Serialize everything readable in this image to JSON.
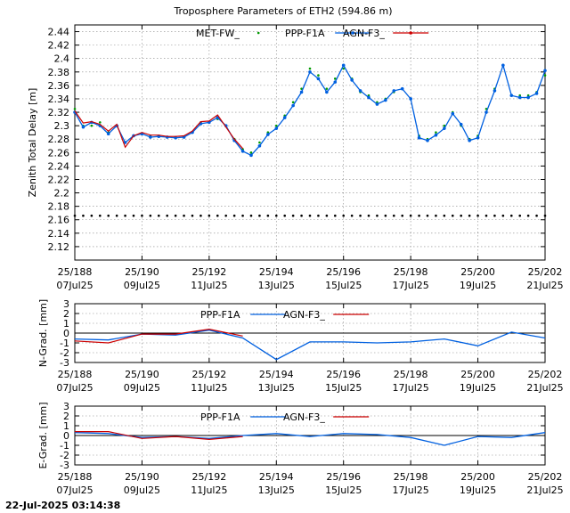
{
  "title": "Troposphere Parameters of ETH2 (594.86 m)",
  "footer": "22-Jul-2025 03:14:38",
  "colors": {
    "met": "#009900",
    "ppp": "#0060e0",
    "agn": "#cc0000",
    "ref": "#000000",
    "grid": "#888888"
  },
  "chart_data": [
    {
      "id": "ztd",
      "type": "line",
      "ylabel": "Zenith Total Delay [m]",
      "ylim": [
        2.1,
        2.45
      ],
      "yticks": [
        2.12,
        2.14,
        2.16,
        2.18,
        2.2,
        2.22,
        2.24,
        2.26,
        2.28,
        2.3,
        2.32,
        2.34,
        2.36,
        2.38,
        2.4,
        2.42,
        2.44
      ],
      "xlim": [
        188,
        202
      ],
      "xticks": [
        188,
        190,
        192,
        194,
        196,
        198,
        200,
        202
      ],
      "xticklabels_top": [
        "25/188",
        "25/190",
        "25/192",
        "25/194",
        "25/196",
        "25/198",
        "25/200",
        "25/202"
      ],
      "xticklabels_bottom": [
        "07Jul25",
        "09Jul25",
        "11Jul25",
        "13Jul25",
        "15Jul25",
        "17Jul25",
        "19Jul25",
        "21Jul25"
      ],
      "grid": true,
      "legend": [
        {
          "label": "MET-FW_",
          "series": "met"
        },
        {
          "label": "PPP-F1A",
          "series": "ppp"
        },
        {
          "label": "AGN-F3_",
          "series": "agn"
        }
      ],
      "series": [
        {
          "key": "met",
          "name": "MET-FW_",
          "style": "points",
          "x": [
            188.0,
            188.25,
            188.5,
            188.75,
            189.0,
            189.25,
            189.5,
            189.75,
            190.0,
            190.25,
            190.5,
            190.75,
            191.0,
            191.25,
            191.5,
            191.75,
            192.0,
            192.25,
            192.5,
            192.75,
            193.0,
            193.25,
            193.5,
            193.75,
            194.0,
            194.25,
            194.5,
            194.75,
            195.0,
            195.25,
            195.5,
            195.75,
            196.0,
            196.25,
            196.5,
            196.75,
            197.0,
            197.25,
            197.5,
            197.75,
            198.0,
            198.25,
            198.5,
            198.75,
            199.0,
            199.25,
            199.5,
            199.75,
            200.0,
            200.25,
            200.5,
            200.75,
            201.0,
            201.25,
            201.5,
            201.75,
            202.0
          ],
          "y": [
            2.325,
            2.3,
            2.3,
            2.305,
            2.29,
            2.3,
            2.275,
            2.285,
            2.288,
            2.285,
            2.285,
            2.283,
            2.283,
            2.284,
            2.29,
            2.305,
            2.305,
            2.31,
            2.3,
            2.28,
            2.265,
            2.26,
            2.275,
            2.29,
            2.3,
            2.315,
            2.335,
            2.355,
            2.385,
            2.375,
            2.355,
            2.37,
            2.385,
            2.37,
            2.35,
            2.345,
            2.335,
            2.34,
            2.35,
            2.355,
            2.34,
            2.285,
            2.28,
            2.29,
            2.3,
            2.32,
            2.3,
            2.28,
            2.285,
            2.325,
            2.355,
            2.39,
            2.345,
            2.345,
            2.345,
            2.35,
            2.375
          ]
        },
        {
          "key": "ppp",
          "name": "PPP-F1A",
          "style": "line-points",
          "x": [
            188.0,
            188.25,
            188.5,
            188.75,
            189.0,
            189.25,
            189.5,
            189.75,
            190.0,
            190.25,
            190.5,
            190.75,
            191.0,
            191.25,
            191.5,
            191.75,
            192.0,
            192.25,
            192.5,
            192.75,
            193.0,
            193.25,
            193.5,
            193.75,
            194.0,
            194.25,
            194.5,
            194.75,
            195.0,
            195.25,
            195.5,
            195.75,
            196.0,
            196.25,
            196.5,
            196.75,
            197.0,
            197.25,
            197.5,
            197.75,
            198.0,
            198.25,
            198.5,
            198.75,
            199.0,
            199.25,
            199.5,
            199.75,
            200.0,
            200.25,
            200.5,
            200.75,
            201.0,
            201.25,
            201.5,
            201.75,
            202.0
          ],
          "y": [
            2.32,
            2.298,
            2.305,
            2.3,
            2.288,
            2.3,
            2.275,
            2.285,
            2.288,
            2.283,
            2.284,
            2.283,
            2.282,
            2.283,
            2.29,
            2.303,
            2.305,
            2.312,
            2.3,
            2.278,
            2.262,
            2.256,
            2.27,
            2.287,
            2.296,
            2.312,
            2.33,
            2.35,
            2.38,
            2.37,
            2.35,
            2.365,
            2.39,
            2.368,
            2.352,
            2.342,
            2.332,
            2.338,
            2.352,
            2.355,
            2.34,
            2.282,
            2.278,
            2.286,
            2.296,
            2.318,
            2.302,
            2.278,
            2.282,
            2.32,
            2.352,
            2.39,
            2.345,
            2.342,
            2.342,
            2.348,
            2.382
          ]
        },
        {
          "key": "agn",
          "name": "AGN-F3_",
          "style": "line",
          "x": [
            188.0,
            188.25,
            188.5,
            188.75,
            189.0,
            189.25,
            189.5,
            189.75,
            190.0,
            190.25,
            190.5,
            190.75,
            191.0,
            191.25,
            191.5,
            191.75,
            192.0,
            192.25,
            192.5,
            192.75,
            193.0
          ],
          "y": [
            2.322,
            2.304,
            2.306,
            2.302,
            2.292,
            2.302,
            2.268,
            2.285,
            2.29,
            2.286,
            2.286,
            2.284,
            2.284,
            2.285,
            2.292,
            2.306,
            2.307,
            2.316,
            2.298,
            2.28,
            2.266
          ]
        },
        {
          "key": "ref",
          "name": "",
          "style": "points",
          "x": [
            188.0,
            188.25,
            188.5,
            188.75,
            189.0,
            189.25,
            189.5,
            189.75,
            190.0,
            190.25,
            190.5,
            190.75,
            191.0,
            191.25,
            191.5,
            191.75,
            192.0,
            192.25,
            192.5,
            192.75,
            193.0,
            193.25,
            193.5,
            193.75,
            194.0,
            194.25,
            194.5,
            194.75,
            195.0,
            195.25,
            195.5,
            195.75,
            196.0,
            196.25,
            196.5,
            196.75,
            197.0,
            197.25,
            197.5,
            197.75,
            198.0,
            198.25,
            198.5,
            198.75,
            199.0,
            199.25,
            199.5,
            199.75,
            200.0,
            200.25,
            200.5,
            200.75,
            201.0,
            201.25,
            201.5,
            201.75,
            202.0
          ],
          "y": [
            2.166,
            2.166,
            2.166,
            2.166,
            2.166,
            2.166,
            2.166,
            2.166,
            2.166,
            2.166,
            2.166,
            2.166,
            2.166,
            2.166,
            2.166,
            2.166,
            2.166,
            2.166,
            2.166,
            2.166,
            2.166,
            2.166,
            2.166,
            2.166,
            2.166,
            2.166,
            2.166,
            2.166,
            2.166,
            2.166,
            2.166,
            2.166,
            2.166,
            2.166,
            2.166,
            2.166,
            2.166,
            2.166,
            2.166,
            2.166,
            2.166,
            2.166,
            2.166,
            2.166,
            2.166,
            2.166,
            2.166,
            2.166,
            2.166,
            2.166,
            2.166,
            2.166,
            2.166,
            2.166,
            2.166,
            2.166,
            2.166
          ]
        }
      ]
    },
    {
      "id": "ngrad",
      "type": "line",
      "ylabel": "N-Grad. [mm]",
      "ylim": [
        -3,
        3
      ],
      "yticks": [
        -3,
        -2,
        -1,
        0,
        1,
        2,
        3
      ],
      "xlim": [
        188,
        202
      ],
      "xticks": [
        188,
        190,
        192,
        194,
        196,
        198,
        200,
        202
      ],
      "xticklabels_top": [
        "25/188",
        "25/190",
        "25/192",
        "25/194",
        "25/196",
        "25/198",
        "25/200",
        "25/202"
      ],
      "xticklabels_bottom": [
        "07Jul25",
        "09Jul25",
        "11Jul25",
        "13Jul25",
        "15Jul25",
        "17Jul25",
        "19Jul25",
        "21Jul25"
      ],
      "grid": true,
      "zero_line": true,
      "legend": [
        {
          "label": "PPP-F1A",
          "series": "ppp"
        },
        {
          "label": "AGN-F3_",
          "series": "agn"
        }
      ],
      "series": [
        {
          "key": "ppp",
          "name": "PPP-F1A",
          "style": "line",
          "x": [
            188,
            189,
            190,
            191,
            192,
            193,
            194,
            195,
            196,
            197,
            198,
            199,
            200,
            201,
            202
          ],
          "y": [
            -0.6,
            -0.7,
            -0.1,
            -0.2,
            0.3,
            -0.5,
            -2.7,
            -0.9,
            -0.9,
            -1.0,
            -0.9,
            -0.6,
            -1.3,
            0.1,
            -0.5
          ]
        },
        {
          "key": "agn",
          "name": "AGN-F3_",
          "style": "line",
          "x": [
            188,
            189,
            190,
            191,
            192,
            193
          ],
          "y": [
            -0.8,
            -1.0,
            -0.1,
            -0.1,
            0.4,
            -0.3
          ]
        }
      ]
    },
    {
      "id": "egrad",
      "type": "line",
      "ylabel": "E-Grad. [mm]",
      "ylim": [
        -3,
        3
      ],
      "yticks": [
        -3,
        -2,
        -1,
        0,
        1,
        2,
        3
      ],
      "xlim": [
        188,
        202
      ],
      "xticks": [
        188,
        190,
        192,
        194,
        196,
        198,
        200,
        202
      ],
      "xticklabels_top": [
        "25/188",
        "25/190",
        "25/192",
        "25/194",
        "25/196",
        "25/198",
        "25/200",
        "25/202"
      ],
      "xticklabels_bottom": [
        "07Jul25",
        "09Jul25",
        "11Jul25",
        "13Jul25",
        "15Jul25",
        "17Jul25",
        "19Jul25",
        "21Jul25"
      ],
      "grid": true,
      "zero_line": true,
      "legend": [
        {
          "label": "PPP-F1A",
          "series": "ppp"
        },
        {
          "label": "AGN-F3_",
          "series": "agn"
        }
      ],
      "series": [
        {
          "key": "ppp",
          "name": "PPP-F1A",
          "style": "line",
          "x": [
            188,
            189,
            190,
            191,
            192,
            193,
            194,
            195,
            196,
            197,
            198,
            199,
            200,
            201,
            202
          ],
          "y": [
            0.3,
            0.2,
            -0.2,
            -0.1,
            -0.3,
            0.0,
            0.2,
            -0.1,
            0.2,
            0.1,
            -0.2,
            -1.0,
            -0.1,
            -0.2,
            0.3
          ]
        },
        {
          "key": "agn",
          "name": "AGN-F3_",
          "style": "line",
          "x": [
            188,
            189,
            190,
            191,
            192,
            193
          ],
          "y": [
            0.4,
            0.4,
            -0.3,
            -0.1,
            -0.4,
            -0.1
          ]
        }
      ]
    }
  ]
}
